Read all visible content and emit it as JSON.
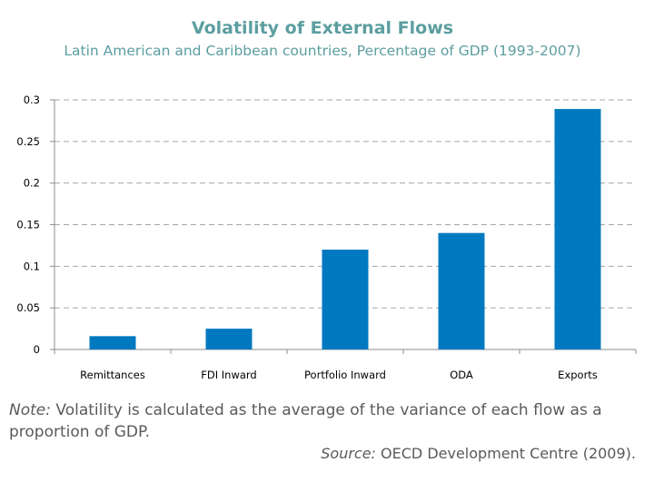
{
  "chart_data": {
    "type": "bar",
    "title": "Volatility of External Flows",
    "subtitle": "Latin American and Caribbean countries, Percentage of GDP (1993-2007)",
    "categories": [
      "Remittances",
      "FDI Inward",
      "Portfolio Inward",
      "ODA",
      "Exports"
    ],
    "values": [
      0.016,
      0.025,
      0.12,
      0.14,
      0.289
    ],
    "yticks": [
      "0",
      "0.05",
      "0.1",
      "0.15",
      "0.2",
      "0.25",
      "0.3"
    ],
    "ylim": [
      0,
      0.3
    ],
    "xlabel": "",
    "ylabel": "",
    "grid": true,
    "bar_color": "#0079c1"
  },
  "note": {
    "label": "Note:",
    "text": " Volatility is calculated as the average of the variance of each flow as a proportion of GDP."
  },
  "source": {
    "label": "Source:",
    "text": " OECD Development Centre (2009)."
  }
}
